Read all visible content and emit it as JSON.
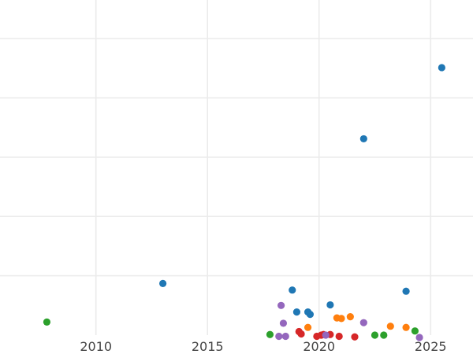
{
  "chart_data": {
    "type": "scatter",
    "title": "",
    "xlabel": "",
    "ylabel": "",
    "xlim": [
      2005.7,
      2026.9
    ],
    "ylim": [
      0,
      5.65
    ],
    "grid": true,
    "legend": "none",
    "x_ticks": [
      2010,
      2015,
      2020,
      2025
    ],
    "x_tick_labels": [
      "2010",
      "2015",
      "2020",
      "2025"
    ],
    "y_gridlines": [
      1,
      2,
      3,
      4,
      5
    ],
    "series": [
      {
        "color": "#1f77b4",
        "points": [
          {
            "x": 2013.0,
            "y": 0.87
          },
          {
            "x": 2018.8,
            "y": 0.76
          },
          {
            "x": 2019.0,
            "y": 0.39
          },
          {
            "x": 2019.5,
            "y": 0.39
          },
          {
            "x": 2019.6,
            "y": 0.35
          },
          {
            "x": 2020.5,
            "y": 0.51
          },
          {
            "x": 2022.0,
            "y": 3.31
          },
          {
            "x": 2023.9,
            "y": 0.74
          },
          {
            "x": 2025.5,
            "y": 4.51
          }
        ]
      },
      {
        "color": "#ff7f0e",
        "points": [
          {
            "x": 2019.5,
            "y": 0.13
          },
          {
            "x": 2020.8,
            "y": 0.29
          },
          {
            "x": 2021.0,
            "y": 0.28
          },
          {
            "x": 2021.4,
            "y": 0.31
          },
          {
            "x": 2023.2,
            "y": 0.15
          },
          {
            "x": 2023.9,
            "y": 0.13
          }
        ]
      },
      {
        "color": "#2ca02c",
        "points": [
          {
            "x": 2007.8,
            "y": 0.22
          },
          {
            "x": 2017.8,
            "y": 0.01
          },
          {
            "x": 2022.5,
            "y": 0.0
          },
          {
            "x": 2022.9,
            "y": 0.0
          },
          {
            "x": 2024.3,
            "y": 0.07
          }
        ]
      },
      {
        "color": "#d62728",
        "points": [
          {
            "x": 2019.1,
            "y": 0.06
          },
          {
            "x": 2019.2,
            "y": 0.02
          },
          {
            "x": 2019.9,
            "y": -0.02
          },
          {
            "x": 2020.1,
            "y": 0.0
          },
          {
            "x": 2020.2,
            "y": 0.01
          },
          {
            "x": 2020.5,
            "y": 0.01
          },
          {
            "x": 2020.9,
            "y": -0.02
          },
          {
            "x": 2021.6,
            "y": -0.03
          }
        ]
      },
      {
        "color": "#9467bd",
        "points": [
          {
            "x": 2018.3,
            "y": 0.5
          },
          {
            "x": 2018.4,
            "y": 0.2
          },
          {
            "x": 2018.2,
            "y": -0.02
          },
          {
            "x": 2018.5,
            "y": -0.02
          },
          {
            "x": 2020.3,
            "y": 0.0
          },
          {
            "x": 2022.0,
            "y": 0.21
          },
          {
            "x": 2024.5,
            "y": -0.04
          }
        ]
      }
    ]
  }
}
